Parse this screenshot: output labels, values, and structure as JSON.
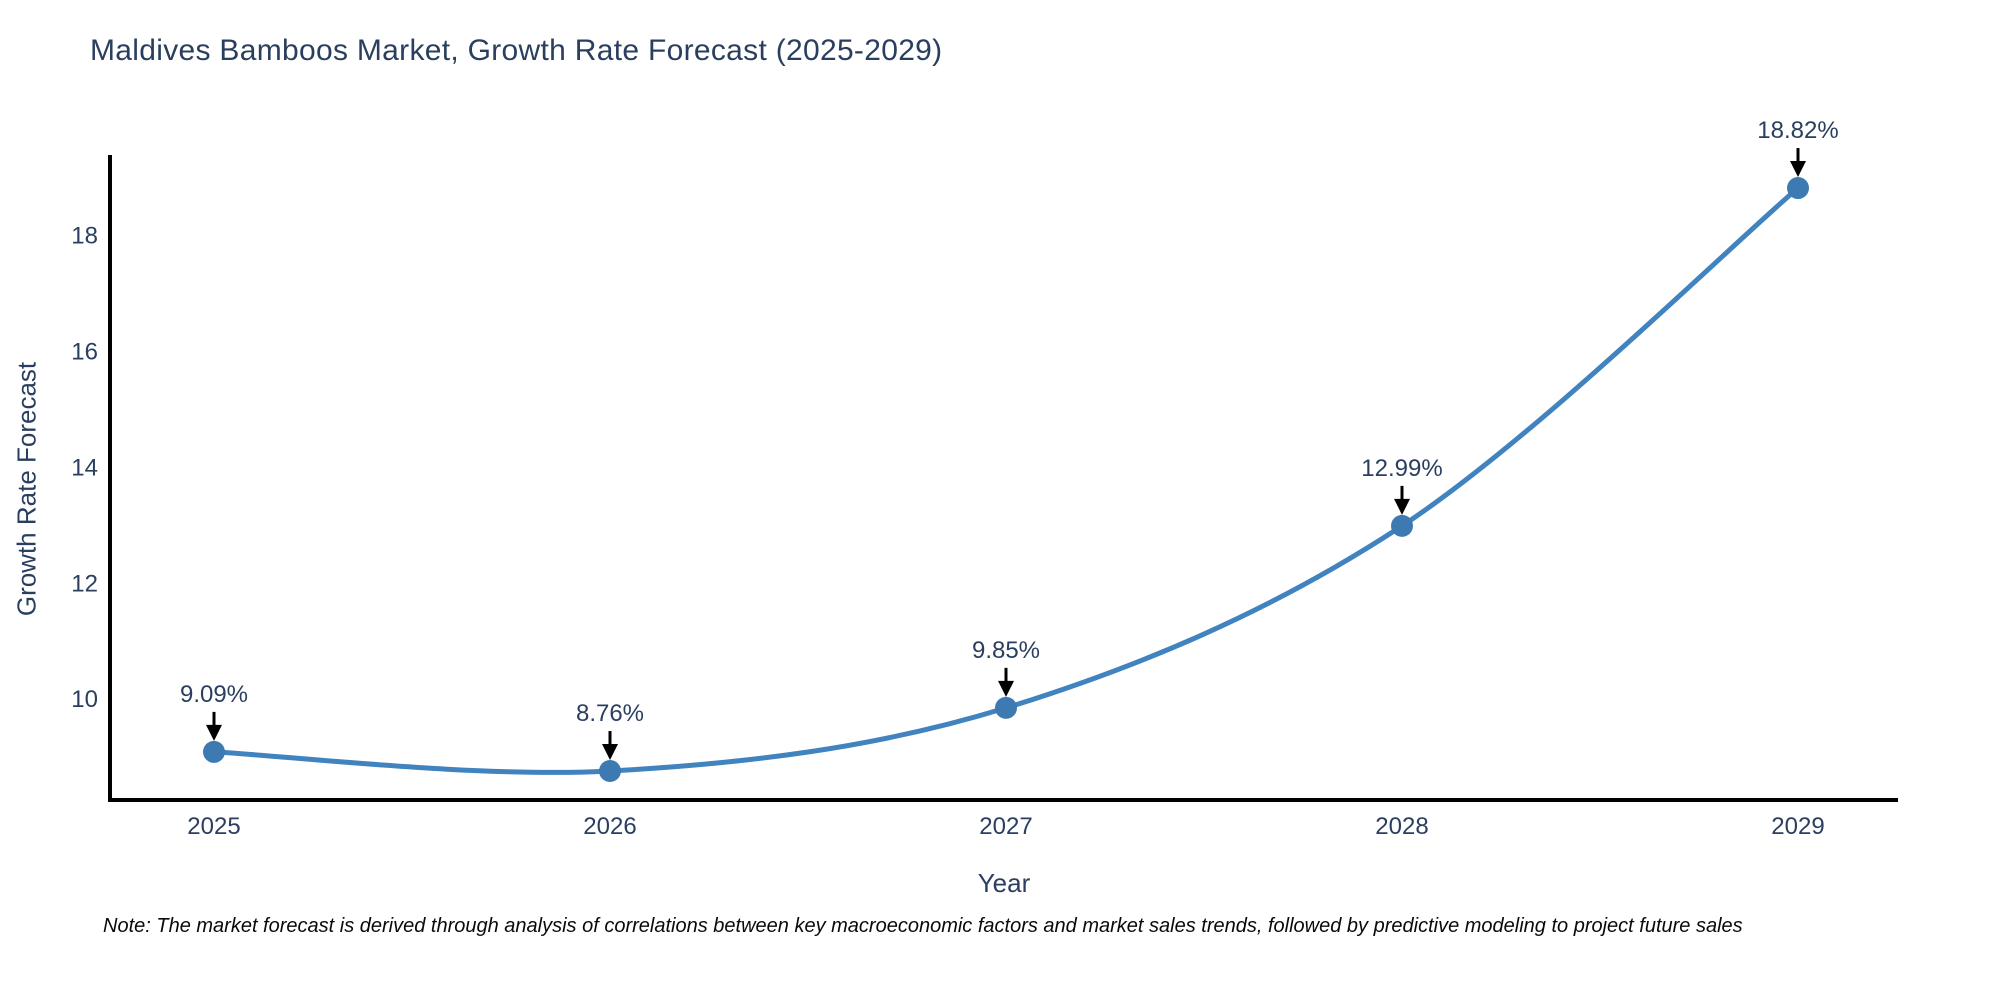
{
  "page": {
    "background": "#ffffff"
  },
  "chart_data": {
    "type": "line",
    "title": "Maldives Bamboos Market, Growth Rate Forecast (2025-2029)",
    "xlabel": "Year",
    "ylabel": "Growth Rate Forecast",
    "categories": [
      "2025",
      "2026",
      "2027",
      "2028",
      "2029"
    ],
    "values": [
      9.09,
      8.76,
      9.85,
      12.99,
      18.82
    ],
    "point_labels": [
      "9.09%",
      "8.76%",
      "9.85%",
      "12.99%",
      "18.82%"
    ],
    "yticks": [
      10,
      12,
      14,
      16,
      18
    ],
    "ylim": [
      8.26,
      19.39
    ],
    "grid": false,
    "legend_position": "none",
    "line_shape": "spline",
    "line_color": "#4183bf",
    "marker_color": "#3d7ab2",
    "axis_color": "#000000",
    "text_color": "#2a3f5f",
    "annotation_color": "#2a3f5f",
    "arrow_color": "#000000",
    "note": "Note: The market forecast is derived through analysis of correlations between key macroeconomic factors and market sales trends, followed by predictive modeling to project future sales"
  }
}
